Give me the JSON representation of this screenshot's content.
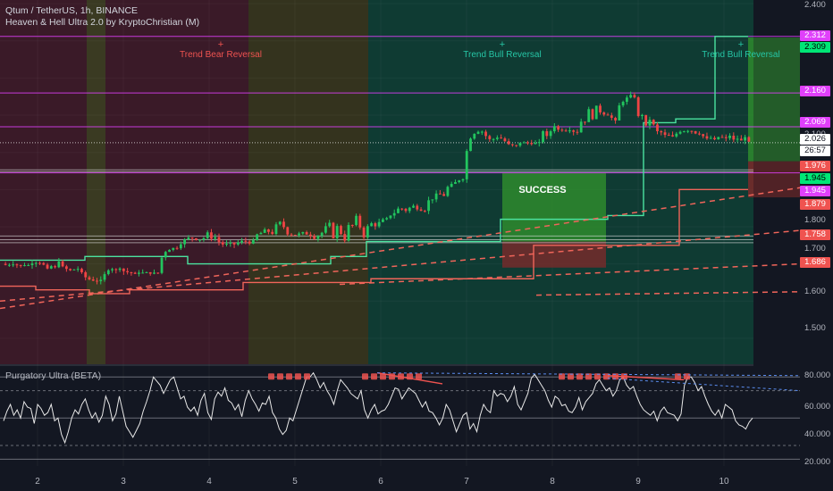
{
  "header": {
    "symbol_line": "Qtum / TetherUS, 1h, BINANCE",
    "indicator_line": "Heaven & Hell Ultra 2.0 by KryptoChristian (M)"
  },
  "oscillator": {
    "title": "Purgatory Ultra (BETA)"
  },
  "annotations": {
    "bear_reversal": "Trend Bear Reversal",
    "bull_reversal_1": "Trend Bull Reversal",
    "bull_reversal_2": "Trend Bull Reversal",
    "plus": "+",
    "success": "SUCCESS"
  },
  "price_tags": {
    "t2312": "2.312",
    "t2309": "2.309",
    "t2160": "2.160",
    "t2069": "2.069",
    "t2026": "2.026",
    "t2657": "26:57",
    "t1976": "1.976",
    "t1945a": "1.945",
    "t1945b": "1.945",
    "t1879": "1.879",
    "t1758": "1.758",
    "t1686": "1.686"
  },
  "colors": {
    "background": "#131722",
    "bull": "#26a69a",
    "green": "#4caf50",
    "red": "#ef5350",
    "magenta": "#e040fb",
    "bright_green": "#00e676",
    "candle_up": "#22c55e",
    "candle_down": "#ef4444"
  },
  "chart_data": [
    {
      "type": "candlestick",
      "title": "Qtum / TetherUS, 1h, BINANCE",
      "x_ticks": [
        "2",
        "3",
        "4",
        "5",
        "6",
        "7",
        "8",
        "9",
        "10"
      ],
      "y_ticks": [
        "2.400",
        "2.300",
        "2.200",
        "2.100",
        "2.000",
        "1.900",
        "1.800",
        "1.700",
        "1.600",
        "1.500"
      ],
      "ylim": [
        1.43,
        2.41
      ],
      "last_price": 2.026,
      "countdown": "26:57",
      "horizontal_levels": [
        {
          "value": 2.312,
          "color": "magenta"
        },
        {
          "value": 2.16,
          "color": "magenta"
        },
        {
          "value": 2.069,
          "color": "magenta"
        },
        {
          "value": 1.945,
          "color": "magenta"
        }
      ],
      "close_path": [
        [
          1.7,
          1.69
        ],
        [
          1.705,
          1.69
        ],
        [
          1.72,
          1.68
        ],
        [
          1.7,
          1.67
        ],
        [
          1.65,
          1.66
        ],
        [
          1.69,
          1.68
        ],
        [
          1.68,
          1.67
        ],
        [
          1.67,
          1.68
        ],
        [
          1.74,
          1.75
        ],
        [
          1.76,
          1.78
        ],
        [
          1.75,
          1.8
        ],
        [
          1.74,
          1.76
        ],
        [
          1.75,
          1.77
        ],
        [
          1.77,
          1.8
        ],
        [
          1.76,
          1.83
        ],
        [
          1.77,
          1.79
        ],
        [
          1.76,
          1.82
        ],
        [
          1.73,
          1.86
        ],
        [
          1.74,
          1.85
        ],
        [
          1.79,
          1.83
        ],
        [
          1.82,
          1.88
        ],
        [
          1.84,
          1.87
        ],
        [
          1.87,
          1.9
        ],
        [
          1.93,
          1.92
        ],
        [
          2.06,
          2.05
        ],
        [
          2.05,
          2.02
        ],
        [
          2.04,
          2.01
        ],
        [
          2.02,
          2.03
        ],
        [
          2.09,
          2.03
        ],
        [
          2.06,
          2.03
        ],
        [
          2.07,
          2.15
        ],
        [
          2.1,
          2.08
        ],
        [
          2.14,
          2.16
        ],
        [
          2.12,
          2.05
        ],
        [
          2.08,
          2.03
        ],
        [
          2.06,
          2.05
        ],
        [
          2.05,
          2.03
        ],
        [
          2.06,
          2.03
        ],
        [
          2.05,
          2.02
        ]
      ],
      "close_path_note": "pairs are [low-ish, high-ish] closes per segment"
    },
    {
      "type": "line",
      "title": "Purgatory Ultra (BETA)",
      "y_ticks": [
        "80.000",
        "60.000",
        "40.000",
        "20.000"
      ],
      "ylim": [
        15,
        88
      ],
      "reference_lines": [
        80,
        70,
        50,
        30,
        20
      ],
      "values": [
        48,
        55,
        60,
        52,
        56,
        50,
        62,
        58,
        57,
        46,
        60,
        57,
        52,
        54,
        60,
        48,
        50,
        38,
        32,
        40,
        50,
        56,
        53,
        60,
        64,
        56,
        50,
        54,
        47,
        52,
        66,
        60,
        48,
        53,
        66,
        55,
        44,
        40,
        36,
        41,
        46,
        55,
        62,
        70,
        80,
        77,
        74,
        68,
        73,
        78,
        80,
        72,
        64,
        66,
        58,
        55,
        58,
        52,
        63,
        68,
        54,
        49,
        64,
        69,
        66,
        72,
        63,
        61,
        56,
        60,
        51,
        63,
        70,
        64,
        60,
        55,
        61,
        60,
        66,
        54,
        50,
        42,
        38,
        41,
        50,
        48,
        56,
        64,
        72,
        80,
        80,
        83,
        78,
        72,
        76,
        70,
        66,
        60,
        70,
        78,
        75,
        72,
        68,
        66,
        64,
        70,
        56,
        50,
        56,
        60,
        53,
        55,
        56,
        60,
        66,
        72,
        71,
        64,
        68,
        72,
        70,
        68,
        63,
        58,
        62,
        55,
        54,
        50,
        45,
        50,
        60,
        56,
        48,
        40,
        46,
        52,
        54,
        42,
        46,
        40,
        52,
        60,
        56,
        54,
        70,
        66,
        68,
        67,
        62,
        66,
        73,
        60,
        56,
        62,
        68,
        79,
        82,
        78,
        74,
        70,
        63,
        58,
        66,
        64,
        59,
        60,
        55,
        54,
        58,
        65,
        56,
        62,
        65,
        68,
        75,
        78,
        74,
        70,
        72,
        66,
        70,
        78,
        80,
        74,
        71,
        73,
        66,
        60,
        56,
        54,
        52,
        55,
        48,
        55,
        58,
        54,
        53,
        52,
        48,
        53,
        74,
        80,
        80,
        76,
        70,
        73,
        66,
        60,
        55,
        52,
        56,
        50,
        60,
        58,
        56,
        48,
        45,
        44,
        42,
        47,
        50
      ]
    }
  ]
}
